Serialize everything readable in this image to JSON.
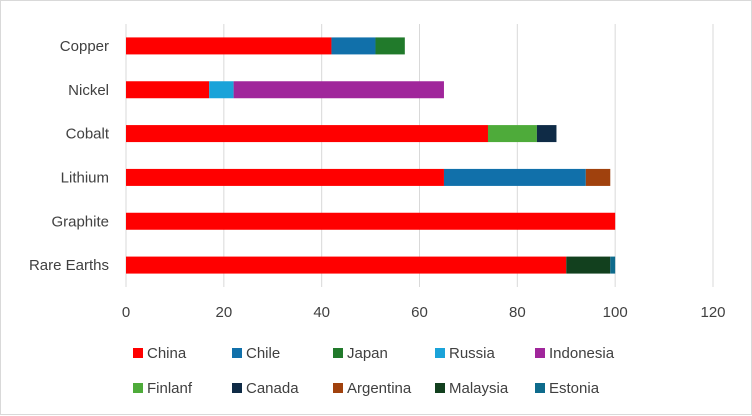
{
  "chart_data": {
    "type": "bar",
    "orientation": "horizontal",
    "stacked": true,
    "title": "",
    "xlabel": "",
    "ylabel": "",
    "xlim": [
      0,
      120
    ],
    "x_ticks": [
      "0",
      "20",
      "40",
      "60",
      "80",
      "100",
      "120"
    ],
    "grid": "vertical",
    "legend_position": "bottom",
    "categories": [
      "Copper",
      "Nickel",
      "Cobalt",
      "Lithium",
      "Graphite",
      "Rare Earths"
    ],
    "series": [
      {
        "name": "China",
        "color": "#ff0000",
        "values": [
          42,
          17,
          74,
          65,
          100,
          90
        ]
      },
      {
        "name": "Chile",
        "color": "#1170aa",
        "values": [
          9,
          0,
          0,
          29,
          0,
          0
        ]
      },
      {
        "name": "Japan",
        "color": "#217a2b",
        "values": [
          6,
          0,
          0,
          0,
          0,
          0
        ]
      },
      {
        "name": "Russia",
        "color": "#1aa3d9",
        "values": [
          0,
          5,
          0,
          0,
          0,
          0
        ]
      },
      {
        "name": "Indonesia",
        "color": "#a0269b",
        "values": [
          0,
          43,
          0,
          0,
          0,
          0
        ]
      },
      {
        "name": "Finlanf",
        "color": "#4eab3a",
        "values": [
          0,
          0,
          10,
          0,
          0,
          0
        ]
      },
      {
        "name": "Canada",
        "color": "#0f2b46",
        "values": [
          0,
          0,
          4,
          0,
          0,
          0
        ]
      },
      {
        "name": "Argentina",
        "color": "#a0410d",
        "values": [
          0,
          0,
          0,
          5,
          0,
          0
        ]
      },
      {
        "name": "Malaysia",
        "color": "#12401e",
        "values": [
          0,
          0,
          0,
          0,
          0,
          9
        ]
      },
      {
        "name": "Estonia",
        "color": "#0e6b8c",
        "values": [
          0,
          0,
          0,
          0,
          0,
          1
        ]
      }
    ]
  }
}
